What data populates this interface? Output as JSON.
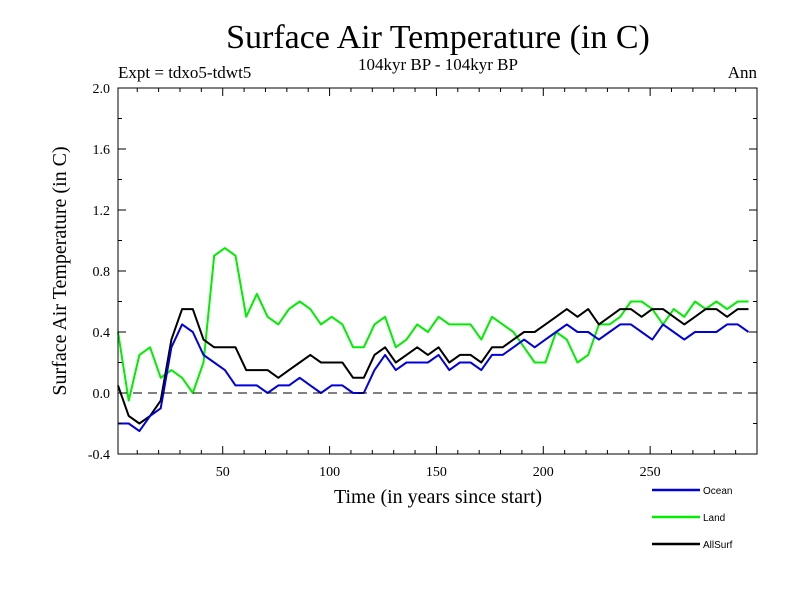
{
  "chart_data": {
    "type": "line",
    "title": "Surface Air Temperature (in C)",
    "subtitle_left": "Expt = tdxo5-tdwt5",
    "subtitle_center": "104kyr BP - 104kyr BP",
    "subtitle_right": "Ann",
    "xlabel": "Time (in years since start)",
    "ylabel": "Surface Air Temperature (in C)",
    "xlim": [
      1,
      300
    ],
    "ylim": [
      -0.4,
      2.0
    ],
    "xticks": [
      50,
      100,
      150,
      200,
      250
    ],
    "yticks": [
      "-0.4",
      "0.0",
      "0.4",
      "0.8",
      "1.2",
      "1.6",
      "2.0"
    ],
    "reference_line": 0.0,
    "x_start": 1,
    "x_step": 5,
    "series": [
      {
        "name": "Land",
        "color": "#00ee00",
        "values": [
          0.4,
          -0.05,
          0.25,
          0.3,
          0.1,
          0.15,
          0.1,
          0.0,
          0.2,
          0.9,
          0.95,
          0.9,
          0.5,
          0.65,
          0.5,
          0.45,
          0.55,
          0.6,
          0.55,
          0.45,
          0.5,
          0.45,
          0.3,
          0.3,
          0.45,
          0.5,
          0.3,
          0.35,
          0.45,
          0.4,
          0.5,
          0.45,
          0.45,
          0.45,
          0.35,
          0.5,
          0.45,
          0.4,
          0.3,
          0.2,
          0.2,
          0.4,
          0.35,
          0.2,
          0.25,
          0.45,
          0.45,
          0.5,
          0.6,
          0.6,
          0.55,
          0.45,
          0.55,
          0.5,
          0.6,
          0.55,
          0.6,
          0.55,
          0.6,
          0.6
        ]
      },
      {
        "name": "AllSurf",
        "color": "#000000",
        "values": [
          0.05,
          -0.15,
          -0.2,
          -0.15,
          -0.05,
          0.35,
          0.55,
          0.55,
          0.35,
          0.3,
          0.3,
          0.3,
          0.15,
          0.15,
          0.15,
          0.1,
          0.15,
          0.2,
          0.25,
          0.2,
          0.2,
          0.2,
          0.1,
          0.1,
          0.25,
          0.3,
          0.2,
          0.25,
          0.3,
          0.25,
          0.3,
          0.2,
          0.25,
          0.25,
          0.2,
          0.3,
          0.3,
          0.35,
          0.4,
          0.4,
          0.45,
          0.5,
          0.55,
          0.5,
          0.55,
          0.45,
          0.5,
          0.55,
          0.55,
          0.5,
          0.55,
          0.55,
          0.5,
          0.45,
          0.5,
          0.55,
          0.55,
          0.5,
          0.55,
          0.55
        ]
      },
      {
        "name": "Ocean",
        "color": "#0000dd",
        "values": [
          -0.2,
          -0.2,
          -0.25,
          -0.15,
          -0.1,
          0.3,
          0.45,
          0.4,
          0.25,
          0.2,
          0.15,
          0.05,
          0.05,
          0.05,
          0.0,
          0.05,
          0.05,
          0.1,
          0.05,
          0.0,
          0.05,
          0.05,
          0.0,
          0.0,
          0.15,
          0.25,
          0.15,
          0.2,
          0.2,
          0.2,
          0.25,
          0.15,
          0.2,
          0.2,
          0.15,
          0.25,
          0.25,
          0.3,
          0.35,
          0.3,
          0.35,
          0.4,
          0.45,
          0.4,
          0.4,
          0.35,
          0.4,
          0.45,
          0.45,
          0.4,
          0.35,
          0.45,
          0.4,
          0.35,
          0.4,
          0.4,
          0.4,
          0.45,
          0.45,
          0.4
        ]
      }
    ],
    "legend": [
      {
        "name": "Ocean",
        "color": "#0000dd"
      },
      {
        "name": "Land",
        "color": "#00ee00"
      },
      {
        "name": "AllSurf",
        "color": "#000000"
      }
    ],
    "legend_position": "bottom-right",
    "grid": false
  }
}
